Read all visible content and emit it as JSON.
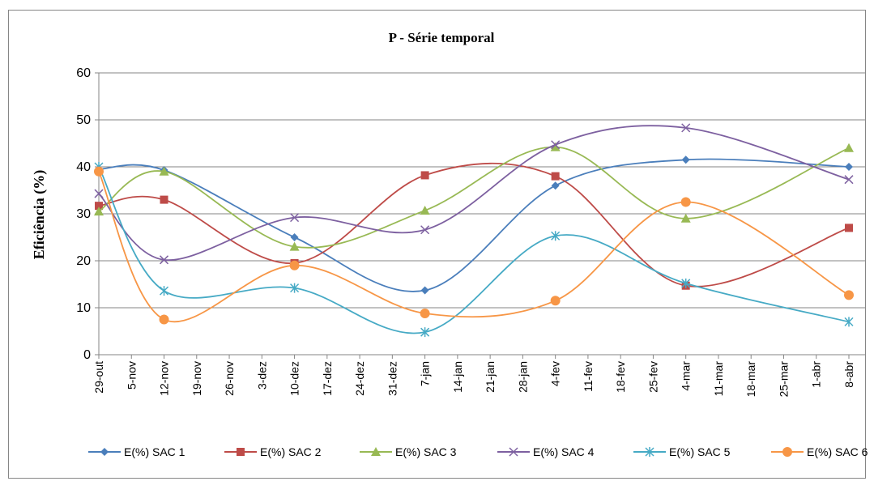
{
  "chart_data": {
    "type": "line",
    "title": "P - Série temporal",
    "y_label": "Eficiência (%)",
    "categories": [
      "29-out",
      "5-nov",
      "12-nov",
      "19-nov",
      "26-nov",
      "3-dez",
      "10-dez",
      "17-dez",
      "24-dez",
      "31-dez",
      "7-jan",
      "14-jan",
      "21-jan",
      "28-jan",
      "4-fev",
      "11-fev",
      "18-fev",
      "25-fev",
      "4-mar",
      "11-mar",
      "18-mar",
      "25-mar",
      "1-abr",
      "8-abr"
    ],
    "ylim": [
      0,
      60
    ],
    "yticks": [
      0,
      10,
      20,
      30,
      40,
      50,
      60
    ],
    "grid": true,
    "smooth": true,
    "legend": "bottom",
    "series": [
      {
        "name": "E(%) SAC 1",
        "color": "#4a7ebb",
        "marker": "diamond",
        "values": [
          39.5,
          null,
          39.3,
          null,
          null,
          null,
          25,
          null,
          null,
          null,
          13.7,
          null,
          null,
          null,
          36,
          null,
          null,
          null,
          41.5,
          null,
          null,
          null,
          null,
          40
        ]
      },
      {
        "name": "E(%) SAC 2",
        "color": "#be4b48",
        "marker": "square",
        "values": [
          31.7,
          null,
          33,
          null,
          null,
          null,
          19.5,
          null,
          null,
          null,
          38.2,
          null,
          null,
          null,
          38,
          null,
          null,
          null,
          14.7,
          null,
          null,
          null,
          null,
          27
        ]
      },
      {
        "name": "E(%) SAC 3",
        "color": "#98b954",
        "marker": "triangle",
        "values": [
          30.5,
          null,
          39,
          null,
          null,
          null,
          23,
          null,
          null,
          null,
          30.7,
          null,
          null,
          null,
          44.2,
          null,
          null,
          null,
          29,
          null,
          null,
          null,
          null,
          44
        ]
      },
      {
        "name": "E(%) SAC 4",
        "color": "#7d60a0",
        "marker": "x",
        "values": [
          34.3,
          null,
          20.2,
          null,
          null,
          null,
          29.2,
          null,
          null,
          null,
          26.6,
          null,
          null,
          null,
          44.7,
          null,
          null,
          null,
          48.3,
          null,
          null,
          null,
          null,
          37.3
        ]
      },
      {
        "name": "E(%) SAC 5",
        "color": "#46aac5",
        "marker": "star",
        "values": [
          40,
          null,
          13.6,
          null,
          null,
          null,
          14.2,
          null,
          null,
          null,
          4.8,
          null,
          null,
          null,
          25.3,
          null,
          null,
          null,
          15.2,
          null,
          null,
          null,
          null,
          7
        ]
      },
      {
        "name": "E(%) SAC 6",
        "color": "#f79646",
        "marker": "circle",
        "values": [
          39,
          null,
          7.5,
          null,
          null,
          null,
          19,
          null,
          null,
          null,
          8.8,
          null,
          null,
          null,
          11.5,
          null,
          null,
          null,
          32.5,
          null,
          null,
          null,
          null,
          12.7
        ]
      }
    ]
  }
}
